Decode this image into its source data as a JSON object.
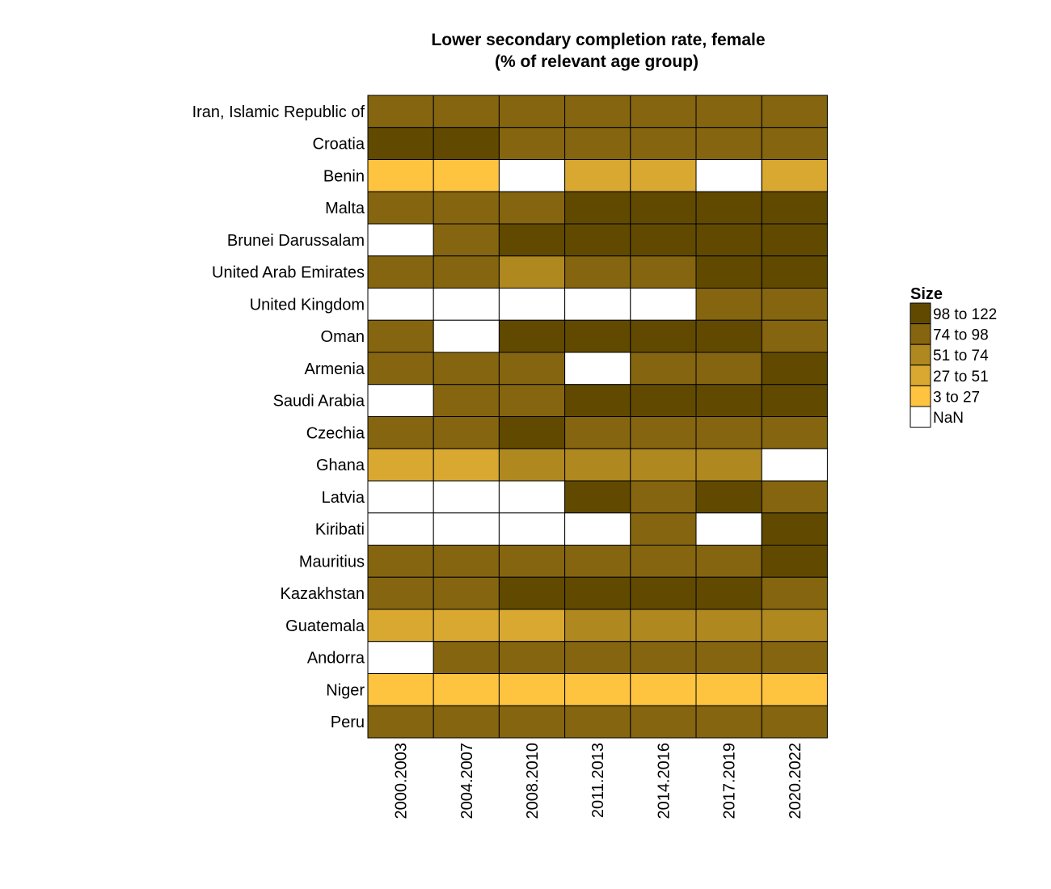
{
  "chart_data": {
    "type": "heatmap",
    "title_lines": [
      "Lower secondary completion rate, female",
      "(% of relevant age group)"
    ],
    "x_categories": [
      "2000.2003",
      "2004.2007",
      "2008.2010",
      "2011.2013",
      "2014.2016",
      "2017.2019",
      "2020.2022"
    ],
    "y_categories": [
      "Iran, Islamic Republic of",
      "Croatia",
      "Benin",
      "Malta",
      "Brunei Darussalam",
      "United Arab Emirates",
      "United Kingdom",
      "Oman",
      "Armenia",
      "Saudi Arabia",
      "Czechia",
      "Ghana",
      "Latvia",
      "Kiribati",
      "Mauritius",
      "Kazakhstan",
      "Guatemala",
      "Andorra",
      "Niger",
      "Peru"
    ],
    "legend": {
      "title": "Size",
      "bins": [
        {
          "label": "98 to 122",
          "color": "#614a00"
        },
        {
          "label": "74 to 98",
          "color": "#85650f"
        },
        {
          "label": "51 to 74",
          "color": "#b08820"
        },
        {
          "label": "27 to 51",
          "color": "#d8a830"
        },
        {
          "label": "3 to 27",
          "color": "#fec440"
        },
        {
          "label": "NaN",
          "color": "#ffffff"
        }
      ]
    },
    "bin_index_key": "0 = 98 to 122, 1 = 74 to 98, 2 = 51 to 74, 3 = 27 to 51, 4 = 3 to 27, 5 = NaN",
    "cells": [
      [
        1,
        1,
        1,
        1,
        1,
        1,
        1
      ],
      [
        0,
        0,
        1,
        1,
        1,
        1,
        1
      ],
      [
        4,
        4,
        5,
        3,
        3,
        5,
        3
      ],
      [
        1,
        1,
        1,
        0,
        0,
        0,
        0
      ],
      [
        5,
        1,
        0,
        0,
        0,
        0,
        0
      ],
      [
        1,
        1,
        2,
        1,
        1,
        0,
        0
      ],
      [
        5,
        5,
        5,
        5,
        5,
        1,
        1
      ],
      [
        1,
        5,
        0,
        0,
        0,
        0,
        1
      ],
      [
        1,
        1,
        1,
        5,
        1,
        1,
        0
      ],
      [
        5,
        1,
        1,
        0,
        0,
        0,
        0
      ],
      [
        1,
        1,
        0,
        1,
        1,
        1,
        1
      ],
      [
        3,
        3,
        2,
        2,
        2,
        2,
        5
      ],
      [
        5,
        5,
        5,
        0,
        1,
        0,
        1
      ],
      [
        5,
        5,
        5,
        5,
        1,
        5,
        0
      ],
      [
        1,
        1,
        1,
        1,
        1,
        1,
        0
      ],
      [
        1,
        1,
        0,
        0,
        0,
        0,
        1
      ],
      [
        3,
        3,
        3,
        2,
        2,
        2,
        2
      ],
      [
        5,
        1,
        1,
        1,
        1,
        1,
        1
      ],
      [
        4,
        4,
        4,
        4,
        4,
        4,
        4
      ],
      [
        1,
        1,
        1,
        1,
        1,
        1,
        1
      ]
    ]
  }
}
